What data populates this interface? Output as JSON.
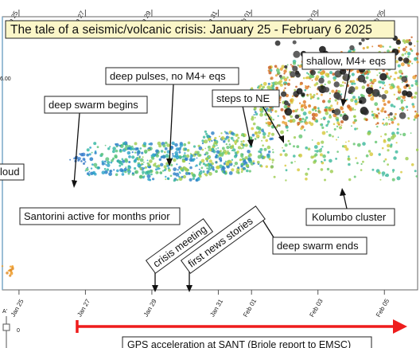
{
  "chart_data": {
    "type": "scatter",
    "title": "The tale of a seismic/volcanic crisis: January 25 - February 6 2025",
    "x_range": [
      "2025-01-24T12:00",
      "2025-02-06T00:00"
    ],
    "ylim": [
      0,
      1
    ],
    "top_ticks": [
      {
        "x": "2025-01-25",
        "label": "Jan 25"
      },
      {
        "x": "2025-01-27",
        "label": "Jan 27"
      },
      {
        "x": "2025-01-29",
        "label": "Jan 29"
      },
      {
        "x": "2025-01-31",
        "label": "Jan 31"
      },
      {
        "x": "2025-02-01",
        "label": "Feb 01"
      },
      {
        "x": "2025-02-03",
        "label": "Feb 03"
      },
      {
        "x": "2025-02-05",
        "label": "Feb 05"
      }
    ],
    "bottom_ticks": [
      {
        "x": "2025-01-25",
        "label": "Jan 25"
      },
      {
        "x": "2025-01-27",
        "label": "Jan 27"
      },
      {
        "x": "2025-01-29",
        "label": "Jan 29"
      },
      {
        "x": "2025-01-31",
        "label": "Jan 31"
      },
      {
        "x": "2025-02-01",
        "label": "Feb 01"
      },
      {
        "x": "2025-02-03",
        "label": "Feb 03"
      },
      {
        "x": "2025-02-05",
        "label": "Feb 05"
      }
    ],
    "left_fragments": [
      "6.00",
      "loud"
    ],
    "corner_labels": [
      "A'",
      "0"
    ],
    "annotations": [
      {
        "text": "deep swarm begins"
      },
      {
        "text": "deep pulses, no M4+ eqs"
      },
      {
        "text": "steps to NE"
      },
      {
        "text": "shallow, M4+ eqs"
      },
      {
        "text": "Kolumbo cluster"
      },
      {
        "text": "Santorini active for months prior"
      },
      {
        "text": "deep swarm ends"
      },
      {
        "text": "crisis meeting"
      },
      {
        "text": "first news stories"
      }
    ],
    "gps_label": "GPS acceleration at SANT (Briole report to EMSC)",
    "gps_start": "2025-01-26T18:00",
    "clusters": [
      {
        "name": "santorini-prior",
        "x0": "2025-01-24T12:00",
        "x1": "2025-01-24T20:00",
        "y0": 0.05,
        "y1": 0.09,
        "count": 12,
        "colors": [
          "#f0a030",
          "#e08a20"
        ]
      },
      {
        "name": "early-swarm",
        "x0": "2025-01-26T12:00",
        "x1": "2025-01-27T00:00",
        "y0": 0.46,
        "y1": 0.5,
        "count": 14,
        "colors": [
          "#2a6fc0",
          "#3a80d0"
        ]
      },
      {
        "name": "deep-band-a",
        "x0": "2025-01-27T00:00",
        "x1": "2025-01-28T12:00",
        "y0": 0.42,
        "y1": 0.54,
        "count": 110,
        "colors": [
          "#1f7ac4",
          "#28a0c8",
          "#2fb5a0",
          "#56c27a"
        ]
      },
      {
        "name": "deep-band-b",
        "x0": "2025-01-28T12:00",
        "x1": "2025-01-30T12:00",
        "y0": 0.4,
        "y1": 0.54,
        "count": 230,
        "colors": [
          "#28a0c8",
          "#3ab89a",
          "#62c46e",
          "#9ccc4e",
          "#2a7fc6"
        ]
      },
      {
        "name": "deep-band-c",
        "x0": "2025-01-30T12:00",
        "x1": "2025-02-01T00:00",
        "y0": 0.42,
        "y1": 0.58,
        "count": 210,
        "colors": [
          "#62c46e",
          "#9ccc4e",
          "#c8d040",
          "#3ab89a",
          "#2a7fc6"
        ]
      },
      {
        "name": "step-ne",
        "x0": "2025-02-01T00:00",
        "x1": "2025-02-01T16:00",
        "y0": 0.45,
        "y1": 0.76,
        "count": 120,
        "colors": [
          "#2a7fc6",
          "#3ab89a",
          "#62c46e",
          "#9ccc4e",
          "#d6c83a"
        ]
      },
      {
        "name": "upper-band",
        "x0": "2025-02-01T12:00",
        "x1": "2025-02-06T00:00",
        "y0": 0.55,
        "y1": 0.93,
        "count": 620,
        "colors": [
          "#9ccc4e",
          "#d6c83a",
          "#e9a030",
          "#e07a22",
          "#c85a1a",
          "#62c46e",
          "#3ab89a"
        ]
      },
      {
        "name": "kolumbo-spread",
        "x0": "2025-02-01T16:00",
        "x1": "2025-02-06T00:00",
        "y0": 0.4,
        "y1": 0.6,
        "count": 140,
        "colors": [
          "#62c46e",
          "#9ccc4e",
          "#3ab89a",
          "#d6c83a"
        ]
      },
      {
        "name": "shallow-m4",
        "x0": "2025-02-01T18:00",
        "x1": "2025-02-06T00:00",
        "y0": 0.62,
        "y1": 0.93,
        "count": 80,
        "colors": [
          "#111111",
          "#2b2b2b",
          "#444444"
        ]
      }
    ]
  }
}
